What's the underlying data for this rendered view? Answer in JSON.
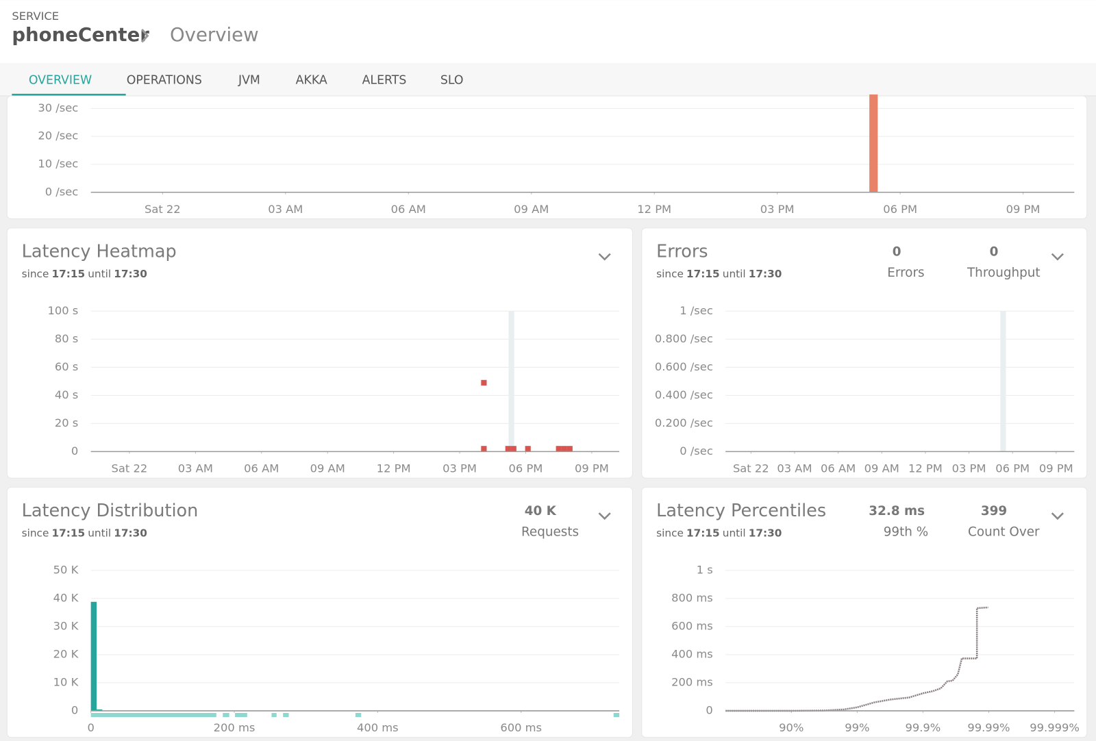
{
  "header": {
    "label": "SERVICE",
    "service": "phoneCenter",
    "page": "Overview"
  },
  "tabs": {
    "items": [
      "OVERVIEW",
      "OPERATIONS",
      "JVM",
      "AKKA",
      "ALERTS",
      "SLO"
    ],
    "active": 0
  },
  "panels": [
    {
      "chart": {
        "type": "bar",
        "color": "#e8836a",
        "xlim": [
          -1.75,
          22.25
        ],
        "xticks": [
          {
            "value": 0,
            "label": "Sat 22"
          },
          {
            "value": 3,
            "label": "03 AM"
          },
          {
            "value": 6,
            "label": "06 AM"
          },
          {
            "value": 9,
            "label": "09 AM"
          },
          {
            "value": 12,
            "label": "12 PM"
          },
          {
            "value": 15,
            "label": "03 PM"
          },
          {
            "value": 18,
            "label": "06 PM"
          },
          {
            "value": 21,
            "label": "09 PM"
          }
        ],
        "ylim": [
          0,
          35
        ],
        "yticks": [
          {
            "value": 0,
            "label": "0 /sec"
          },
          {
            "value": 10,
            "label": "10 /sec"
          },
          {
            "value": 20,
            "label": "20 /sec"
          },
          {
            "value": 30,
            "label": "30 /sec"
          }
        ],
        "x": [
          17.35
        ],
        "values": [
          35
        ]
      }
    },
    {
      "title": "Latency Heatmap",
      "range": [
        "since",
        "17:15",
        "until",
        "17:30"
      ],
      "chart": {
        "type": "heatmap",
        "color": "#d9534f",
        "marker": 17.35,
        "xlim": [
          -1.75,
          22.25
        ],
        "xticks": [
          {
            "value": 0,
            "label": "Sat 22"
          },
          {
            "value": 3,
            "label": "03 AM"
          },
          {
            "value": 6,
            "label": "06 AM"
          },
          {
            "value": 9,
            "label": "09 AM"
          },
          {
            "value": 12,
            "label": "12 PM"
          },
          {
            "value": 15,
            "label": "03 PM"
          },
          {
            "value": 18,
            "label": "06 PM"
          },
          {
            "value": 21,
            "label": "09 PM"
          }
        ],
        "ylim": [
          0,
          100
        ],
        "yticks": [
          0,
          {
            "value": 20,
            "label": "20 s"
          },
          {
            "value": 40,
            "label": "40 s"
          },
          {
            "value": 60,
            "label": "60 s"
          },
          {
            "value": 80,
            "label": "80 s"
          },
          {
            "value": 100,
            "label": "100 s"
          }
        ],
        "x": [
          16.1,
          16.1,
          17.2,
          17.45,
          18.1,
          19.5,
          19.75,
          20.0
        ],
        "values": [
          49,
          2,
          2,
          2,
          2,
          2,
          2,
          2
        ]
      }
    },
    {
      "title": "Errors",
      "range": [
        "since",
        "17:15",
        "until",
        "17:30"
      ],
      "stats": [
        {
          "value": "0",
          "label": "Errors"
        },
        {
          "value": "0",
          "label": "Throughput"
        }
      ],
      "chart": {
        "type": "line",
        "marker": 17.35,
        "xlim": [
          -1.75,
          22.25
        ],
        "xticks": [
          {
            "value": 0,
            "label": "Sat 22"
          },
          {
            "value": 3,
            "label": "03 AM"
          },
          {
            "value": 6,
            "label": "06 AM"
          },
          {
            "value": 9,
            "label": "09 AM"
          },
          {
            "value": 12,
            "label": "12 PM"
          },
          {
            "value": 15,
            "label": "03 PM"
          },
          {
            "value": 18,
            "label": "06 PM"
          },
          {
            "value": 21,
            "label": "09 PM"
          }
        ],
        "ylim": [
          0,
          1
        ],
        "yticks": [
          {
            "value": 0,
            "label": "0 /sec"
          },
          {
            "value": 0.2,
            "label": "0.200 /sec"
          },
          {
            "value": 0.4,
            "label": "0.400 /sec"
          },
          {
            "value": 0.6,
            "label": "0.600 /sec"
          },
          {
            "value": 0.8,
            "label": "0.800 /sec"
          },
          {
            "value": 1,
            "label": "1 /sec"
          }
        ],
        "x": [],
        "values": []
      }
    },
    {
      "title": "Latency Distribution",
      "range": [
        "since",
        "17:15",
        "until",
        "17:30"
      ],
      "stats": [
        {
          "value": "40 K",
          "label": "Requests"
        }
      ],
      "chart": {
        "type": "histogram",
        "color": "#26a69a",
        "rug_color": "#8fd8d0",
        "xlim": [
          0,
          737
        ],
        "xticks": [
          0,
          {
            "value": 200,
            "label": "200 ms"
          },
          {
            "value": 400,
            "label": "400 ms"
          },
          {
            "value": 600,
            "label": "600 ms"
          }
        ],
        "ylim": [
          0,
          50000
        ],
        "yticks": [
          0,
          {
            "value": 10000,
            "label": "10 K"
          },
          {
            "value": 20000,
            "label": "20 K"
          },
          {
            "value": 30000,
            "label": "30 K"
          },
          {
            "value": 40000,
            "label": "40 K"
          },
          {
            "value": 50000,
            "label": "50 K"
          }
        ],
        "bins": [
          0,
          8,
          16
        ],
        "values": [
          38800,
          500
        ],
        "rug": [
          [
            0,
            175
          ],
          [
            184,
            193
          ],
          [
            201,
            218
          ],
          [
            252,
            259
          ],
          [
            268,
            276
          ],
          [
            369,
            377
          ],
          [
            729,
            737
          ]
        ]
      }
    },
    {
      "title": "Latency Percentiles",
      "range": [
        "since",
        "17:15",
        "until",
        "17:30"
      ],
      "stats": [
        {
          "value": "32.8 ms",
          "label": "99th %"
        },
        {
          "value": "399",
          "label": "Count Over"
        }
      ],
      "chart": {
        "type": "step",
        "color": "#8a7f7f",
        "xlim": [
          0,
          5.3
        ],
        "xticks": [
          {
            "value": 1,
            "label": "90%"
          },
          {
            "value": 2,
            "label": "99%"
          },
          {
            "value": 3,
            "label": "99.9%"
          },
          {
            "value": 4,
            "label": "99.99%"
          },
          {
            "value": 5,
            "label": "99.999%"
          }
        ],
        "ylim": [
          0,
          1000
        ],
        "yticks": [
          0,
          {
            "value": 200,
            "label": "200 ms"
          },
          {
            "value": 400,
            "label": "400 ms"
          },
          {
            "value": 600,
            "label": "600 ms"
          },
          {
            "value": 800,
            "label": "800 ms"
          },
          {
            "value": 1000,
            "label": "1 s"
          }
        ],
        "x": [
          0,
          1.0,
          1.5,
          1.8,
          2.0,
          2.26,
          2.5,
          2.79,
          3.0,
          3.15,
          3.27,
          3.37,
          3.45,
          3.53,
          3.59,
          3.82,
          3.82,
          3.99
        ],
        "values": [
          0,
          0,
          2,
          10,
          25,
          60,
          80,
          95,
          125,
          140,
          160,
          210,
          215,
          260,
          373,
          373,
          731,
          736
        ]
      }
    }
  ]
}
